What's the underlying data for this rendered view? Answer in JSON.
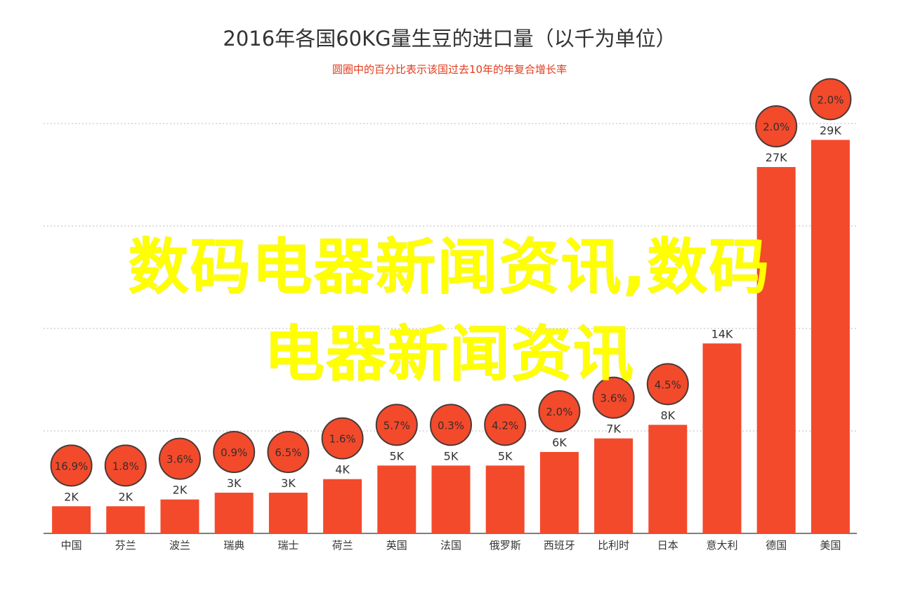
{
  "chart_data": {
    "type": "bar",
    "title": "2016年各国60KG量生豆的进口量（以千为单位）",
    "subtitle": "圆圈中的百分比表示该国过去10年的年复合增长率",
    "xlabel": "",
    "ylabel": "",
    "ylim": [
      0,
      33
    ],
    "grid": true,
    "categories": [
      "中国",
      "芬兰",
      "波兰",
      "瑞典",
      "瑞士",
      "荷兰",
      "英国",
      "法国",
      "俄罗斯",
      "西班牙",
      "比利时",
      "日本",
      "意大利",
      "德国",
      "美国"
    ],
    "values": [
      2,
      2,
      2.5,
      3,
      3,
      4,
      5,
      5,
      5,
      6,
      7,
      8,
      14,
      27,
      29
    ],
    "value_labels": [
      "2K",
      "2K",
      "2K",
      "3K",
      "3K",
      "4K",
      "5K",
      "5K",
      "5K",
      "6K",
      "7K",
      "8K",
      "14K",
      "27K",
      "29K"
    ],
    "growth_labels": [
      "16.9%",
      "1.8%",
      "3.6%",
      "0.9%",
      "6.5%",
      "1.6%",
      "5.7%",
      "0.3%",
      "4.2%",
      "2.0%",
      "3.6%",
      "4.5%",
      "",
      "2.0%",
      "2.0%"
    ],
    "colors": {
      "bar": "#f34a2c",
      "circle": "#f34a2c",
      "circle_stroke": "#4a3a36",
      "circle_text": "#3a2c28",
      "grid": "#bbbbbb",
      "axis_text": "#333333"
    }
  },
  "overlay": {
    "line1": "数码电器新闻资讯,数码",
    "line2": "电器新闻资讯"
  }
}
